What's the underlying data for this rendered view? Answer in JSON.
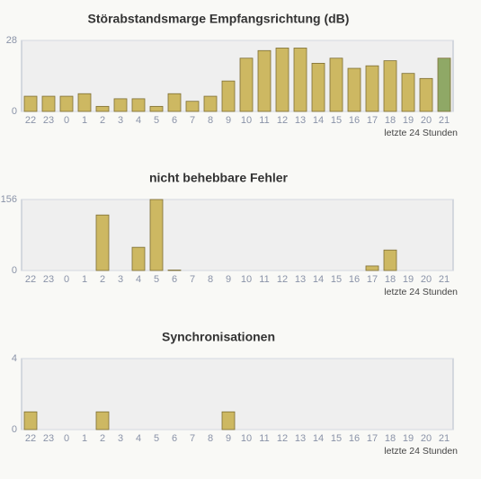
{
  "chart_data": [
    {
      "type": "bar",
      "title": "Störabstandsmarge Empfangsrichtung (dB)",
      "categories": [
        "22",
        "23",
        "0",
        "1",
        "2",
        "3",
        "4",
        "5",
        "6",
        "7",
        "8",
        "9",
        "10",
        "11",
        "12",
        "13",
        "14",
        "15",
        "16",
        "17",
        "18",
        "19",
        "20",
        "21"
      ],
      "values": [
        6,
        6,
        6,
        7,
        2,
        5,
        5,
        2,
        7,
        4,
        6,
        12,
        21,
        24,
        25,
        25,
        19,
        21,
        17,
        18,
        20,
        15,
        13,
        21
      ],
      "color": "#cdb862",
      "last_color": "#8fa866",
      "ylim": [
        0,
        28
      ],
      "yticks": [
        0,
        28
      ],
      "grid": true,
      "note": "letzte 24 Stunden"
    },
    {
      "type": "bar",
      "title": "nicht behebbare Fehler",
      "categories": [
        "22",
        "23",
        "0",
        "1",
        "2",
        "3",
        "4",
        "5",
        "6",
        "7",
        "8",
        "9",
        "10",
        "11",
        "12",
        "13",
        "14",
        "15",
        "16",
        "17",
        "18",
        "19",
        "20",
        "21"
      ],
      "values": [
        0,
        0,
        0,
        0,
        122,
        0,
        51,
        156,
        1,
        0,
        0,
        0,
        0,
        0,
        0,
        0,
        0,
        0,
        0,
        10,
        45,
        0,
        0,
        0
      ],
      "color": "#cdb862",
      "last_color": "#8fa866",
      "ylim": [
        0,
        156
      ],
      "yticks": [
        0,
        156
      ],
      "grid": true,
      "note": "letzte 24 Stunden"
    },
    {
      "type": "bar",
      "title": "Synchronisationen",
      "categories": [
        "22",
        "23",
        "0",
        "1",
        "2",
        "3",
        "4",
        "5",
        "6",
        "7",
        "8",
        "9",
        "10",
        "11",
        "12",
        "13",
        "14",
        "15",
        "16",
        "17",
        "18",
        "19",
        "20",
        "21"
      ],
      "values": [
        1,
        0,
        0,
        0,
        1,
        0,
        0,
        0,
        0,
        0,
        0,
        1,
        0,
        0,
        0,
        0,
        0,
        0,
        0,
        0,
        0,
        0,
        0,
        0
      ],
      "color": "#cdb862",
      "last_color": "#8fa866",
      "ylim": [
        0,
        4
      ],
      "yticks": [
        0,
        4
      ],
      "grid": true,
      "note": "letzte 24 Stunden"
    }
  ]
}
